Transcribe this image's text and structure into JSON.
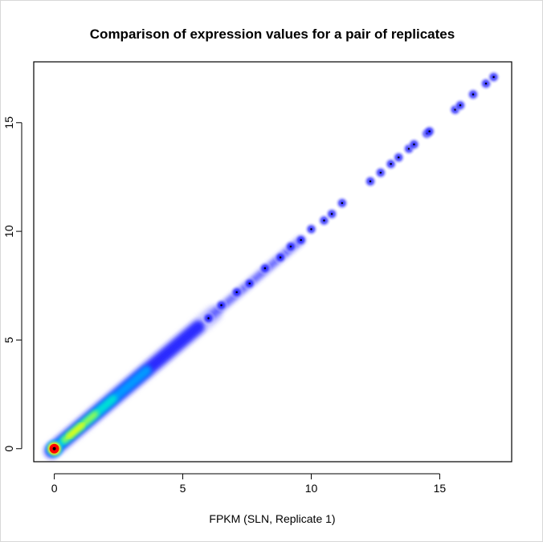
{
  "chart_data": {
    "type": "scatter",
    "style": "smoothed-density",
    "title": "Comparison of expression values for a pair of replicates",
    "xlabel": "FPKM (SLN, Replicate 1)",
    "ylabel": "",
    "xlim": [
      -0.8,
      17.8
    ],
    "ylim": [
      -0.6,
      17.8
    ],
    "x_ticks": [
      "0",
      "5",
      "10",
      "15"
    ],
    "y_ticks": [
      "0",
      "5",
      "10",
      "15"
    ],
    "grid": false,
    "density_colors": [
      "#ffffff",
      "#0000ff",
      "#00ffff",
      "#ffff00",
      "#ff0000",
      "#800000"
    ],
    "points": [
      [
        0.0,
        0.0
      ],
      [
        6.0,
        6.0
      ],
      [
        6.5,
        6.6
      ],
      [
        7.1,
        7.2
      ],
      [
        7.6,
        7.6
      ],
      [
        8.2,
        8.3
      ],
      [
        8.8,
        8.8
      ],
      [
        9.2,
        9.3
      ],
      [
        9.6,
        9.6
      ],
      [
        10.0,
        10.1
      ],
      [
        10.5,
        10.5
      ],
      [
        10.8,
        10.8
      ],
      [
        11.2,
        11.3
      ],
      [
        12.3,
        12.3
      ],
      [
        12.7,
        12.7
      ],
      [
        13.1,
        13.1
      ],
      [
        13.4,
        13.4
      ],
      [
        13.8,
        13.8
      ],
      [
        14.0,
        14.0
      ],
      [
        14.5,
        14.5
      ],
      [
        14.6,
        14.6
      ],
      [
        15.6,
        15.6
      ],
      [
        15.8,
        15.8
      ],
      [
        16.3,
        16.3
      ],
      [
        16.8,
        16.8
      ],
      [
        17.1,
        17.1
      ]
    ]
  }
}
